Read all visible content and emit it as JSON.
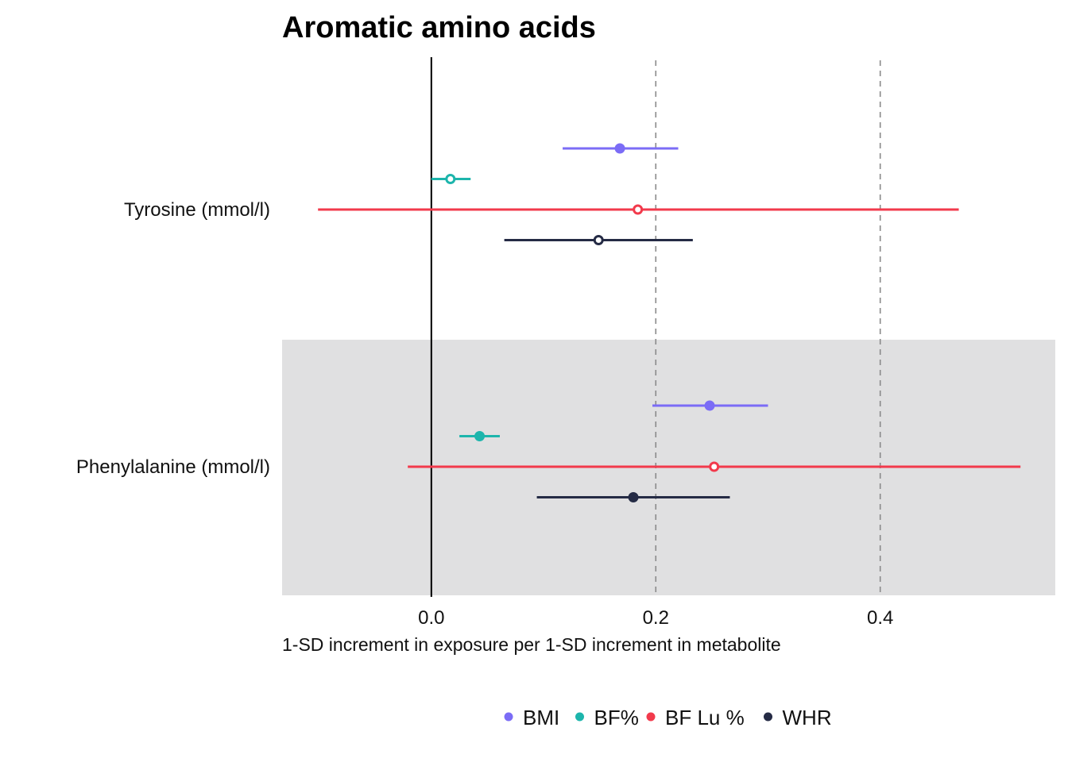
{
  "chart_data": {
    "type": "forest",
    "title": "Aromatic amino acids",
    "xlabel": "1-SD increment in exposure per 1-SD increment in metabolite",
    "ylabel": "",
    "xlim": [
      -0.133,
      0.556
    ],
    "xticks": [
      0.0,
      0.2,
      0.4
    ],
    "xtick_labels": [
      "0.0",
      "0.2",
      "0.4"
    ],
    "reference_line": 0.0,
    "dashed_lines": [
      0.2,
      0.4
    ],
    "categories": [
      "Tyrosine (mmol/l)",
      "Phenylalanine (mmol/l)"
    ],
    "shaded_categories": [
      "Phenylalanine (mmol/l)"
    ],
    "legend_position": "bottom",
    "series": [
      {
        "name": "BMI",
        "color": "#7B6CF6",
        "points": [
          {
            "category": "Tyrosine (mmol/l)",
            "estimate": 0.168,
            "lower": 0.117,
            "upper": 0.22,
            "filled": true
          },
          {
            "category": "Phenylalanine (mmol/l)",
            "estimate": 0.248,
            "lower": 0.197,
            "upper": 0.3,
            "filled": true
          }
        ]
      },
      {
        "name": "BF%",
        "color": "#1DB5AC",
        "points": [
          {
            "category": "Tyrosine (mmol/l)",
            "estimate": 0.017,
            "lower": 0.0,
            "upper": 0.035,
            "filled": false
          },
          {
            "category": "Phenylalanine (mmol/l)",
            "estimate": 0.043,
            "lower": 0.025,
            "upper": 0.061,
            "filled": true
          }
        ]
      },
      {
        "name": "BF Lu %",
        "color": "#F23A4C",
        "points": [
          {
            "category": "Tyrosine (mmol/l)",
            "estimate": 0.184,
            "lower": -0.101,
            "upper": 0.47,
            "filled": false
          },
          {
            "category": "Phenylalanine (mmol/l)",
            "estimate": 0.252,
            "lower": -0.021,
            "upper": 0.525,
            "filled": false
          }
        ]
      },
      {
        "name": "WHR",
        "color": "#252B45",
        "points": [
          {
            "category": "Tyrosine (mmol/l)",
            "estimate": 0.149,
            "lower": 0.065,
            "upper": 0.233,
            "filled": false
          },
          {
            "category": "Phenylalanine (mmol/l)",
            "estimate": 0.18,
            "lower": 0.094,
            "upper": 0.266,
            "filled": true
          }
        ]
      }
    ]
  }
}
